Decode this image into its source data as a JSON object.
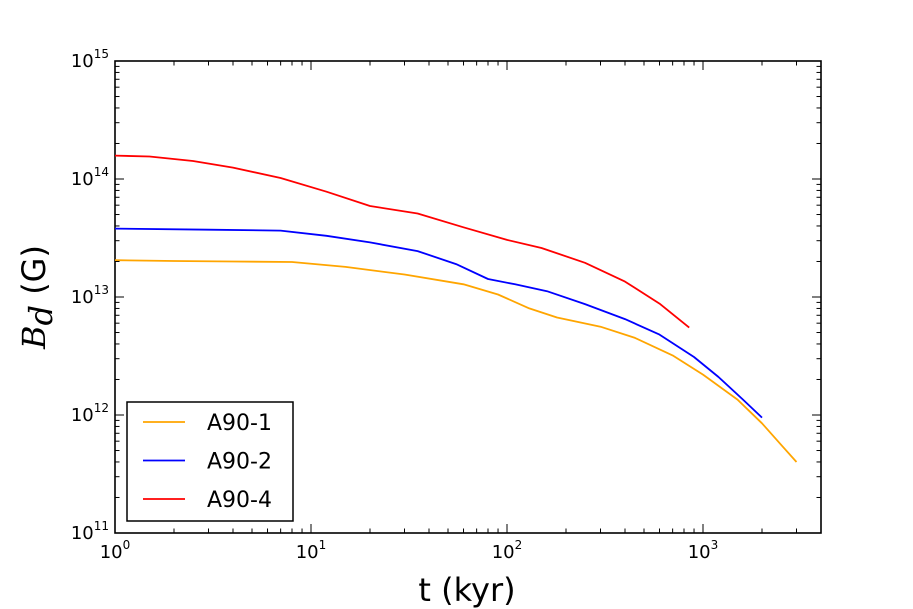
{
  "chart_data": {
    "type": "line",
    "xscale": "log",
    "yscale": "log",
    "xlim": [
      1,
      4000
    ],
    "ylim": [
      100000000000.0,
      1000000000000000.0
    ],
    "xlabel": "t (kyr)",
    "ylabel_symbol": "B",
    "ylabel_subscript": "d",
    "ylabel_unit": " (G)",
    "grid": false,
    "legend_position": "lower-left",
    "x_ticks": [
      {
        "base": "10",
        "exp": "0",
        "value": 1
      },
      {
        "base": "10",
        "exp": "1",
        "value": 10
      },
      {
        "base": "10",
        "exp": "2",
        "value": 100
      },
      {
        "base": "10",
        "exp": "3",
        "value": 1000
      }
    ],
    "y_ticks": [
      {
        "base": "10",
        "exp": "11",
        "value": 100000000000.0
      },
      {
        "base": "10",
        "exp": "12",
        "value": 1000000000000.0
      },
      {
        "base": "10",
        "exp": "13",
        "value": 10000000000000.0
      },
      {
        "base": "10",
        "exp": "14",
        "value": 100000000000000.0
      },
      {
        "base": "10",
        "exp": "15",
        "value": 1000000000000000.0
      }
    ],
    "series": [
      {
        "name": "A90-1",
        "color": "#FFA500",
        "points": [
          [
            1,
            20500000000000.0
          ],
          [
            2,
            20200000000000.0
          ],
          [
            4,
            20000000000000.0
          ],
          [
            8,
            19800000000000.0
          ],
          [
            15,
            18000000000000.0
          ],
          [
            30,
            15500000000000.0
          ],
          [
            60,
            12800000000000.0
          ],
          [
            90,
            10500000000000.0
          ],
          [
            130,
            8000000000000.0
          ],
          [
            180,
            6700000000000.0
          ],
          [
            300,
            5600000000000.0
          ],
          [
            450,
            4500000000000.0
          ],
          [
            700,
            3200000000000.0
          ],
          [
            1000,
            2200000000000.0
          ],
          [
            1500,
            1350000000000.0
          ],
          [
            2000,
            850000000000.0
          ],
          [
            2500,
            560000000000.0
          ],
          [
            3000,
            400000000000.0
          ]
        ]
      },
      {
        "name": "A90-2",
        "color": "#0000FF",
        "points": [
          [
            1,
            38000000000000.0
          ],
          [
            3,
            37200000000000.0
          ],
          [
            7,
            36500000000000.0
          ],
          [
            12,
            33000000000000.0
          ],
          [
            20,
            29000000000000.0
          ],
          [
            35,
            24500000000000.0
          ],
          [
            55,
            19000000000000.0
          ],
          [
            80,
            14200000000000.0
          ],
          [
            110,
            12800000000000.0
          ],
          [
            160,
            11200000000000.0
          ],
          [
            250,
            8700000000000.0
          ],
          [
            400,
            6500000000000.0
          ],
          [
            600,
            4800000000000.0
          ],
          [
            900,
            3100000000000.0
          ],
          [
            1200,
            2100000000000.0
          ],
          [
            1600,
            1350000000000.0
          ],
          [
            2000,
            950000000000.0
          ]
        ]
      },
      {
        "name": "A90-4",
        "color": "#FF0000",
        "points": [
          [
            1,
            158000000000000.0
          ],
          [
            1.5,
            155000000000000.0
          ],
          [
            2.5,
            142000000000000.0
          ],
          [
            4,
            125000000000000.0
          ],
          [
            7,
            102000000000000.0
          ],
          [
            12,
            78000000000000.0
          ],
          [
            20,
            59000000000000.0
          ],
          [
            35,
            51000000000000.0
          ],
          [
            60,
            39000000000000.0
          ],
          [
            100,
            30500000000000.0
          ],
          [
            150,
            26000000000000.0
          ],
          [
            250,
            19500000000000.0
          ],
          [
            400,
            13500000000000.0
          ],
          [
            600,
            8800000000000.0
          ],
          [
            850,
            5500000000000.0
          ]
        ]
      }
    ]
  }
}
